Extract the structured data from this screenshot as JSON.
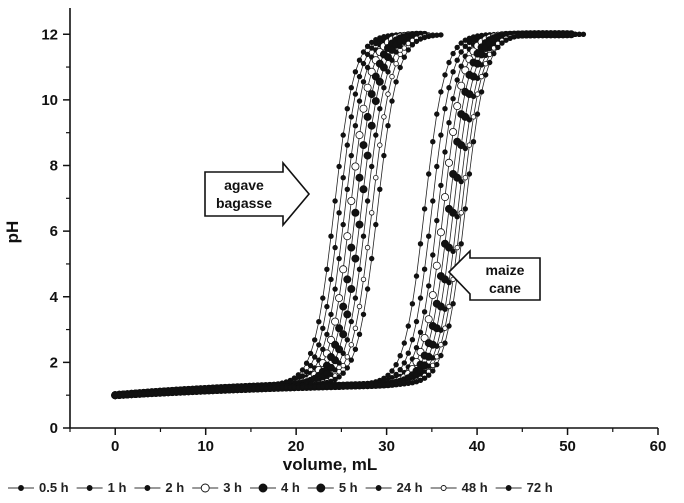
{
  "chart_data": {
    "type": "scatter",
    "title": "",
    "xlabel": "volume, mL",
    "ylabel": "pH",
    "xlim": [
      -5,
      60
    ],
    "ylim": [
      0,
      12.8
    ],
    "xticks": [
      0,
      10,
      20,
      30,
      40,
      50,
      60
    ],
    "yticks": [
      0,
      2,
      4,
      6,
      8,
      10,
      12
    ],
    "grid": false,
    "legend_position": "bottom",
    "annotations": [
      {
        "lines": [
          "agave",
          "bagasse"
        ],
        "arrow": "right",
        "points_to": "agave bagasse curves"
      },
      {
        "lines": [
          "maize",
          "cane"
        ],
        "arrow": "left",
        "points_to": "maize cane curves"
      }
    ],
    "curve_params": {
      "start_ph": 1.0,
      "end_ph": 12.0,
      "agave_bagasse_midpoints_mL": [
        24.2,
        24.8,
        25.4,
        26.0,
        26.6,
        27.2,
        27.8,
        28.4,
        29.0
      ],
      "agave_bagasse_end_mL": [
        32,
        32.5,
        33,
        33.5,
        34,
        34.5,
        35,
        35.5,
        36
      ],
      "maize_cane_midpoints_mL": [
        34.2,
        35.0,
        35.7,
        36.3,
        36.9,
        37.4,
        37.9,
        38.3,
        38.7
      ],
      "maize_cane_end_mL": [
        48,
        48.5,
        49,
        49.5,
        50,
        50.5,
        51,
        51.5,
        52
      ]
    },
    "series": [
      {
        "name": "0.5 h",
        "marker": "small-filled"
      },
      {
        "name": "1 h",
        "marker": "small-filled"
      },
      {
        "name": "2 h",
        "marker": "small-filled"
      },
      {
        "name": "3 h",
        "marker": "large-open"
      },
      {
        "name": "4 h",
        "marker": "large-filled"
      },
      {
        "name": "5 h",
        "marker": "large-filled"
      },
      {
        "name": "24 h",
        "marker": "small-filled"
      },
      {
        "name": "48 h",
        "marker": "small-open"
      },
      {
        "name": "72 h",
        "marker": "small-filled"
      }
    ]
  }
}
